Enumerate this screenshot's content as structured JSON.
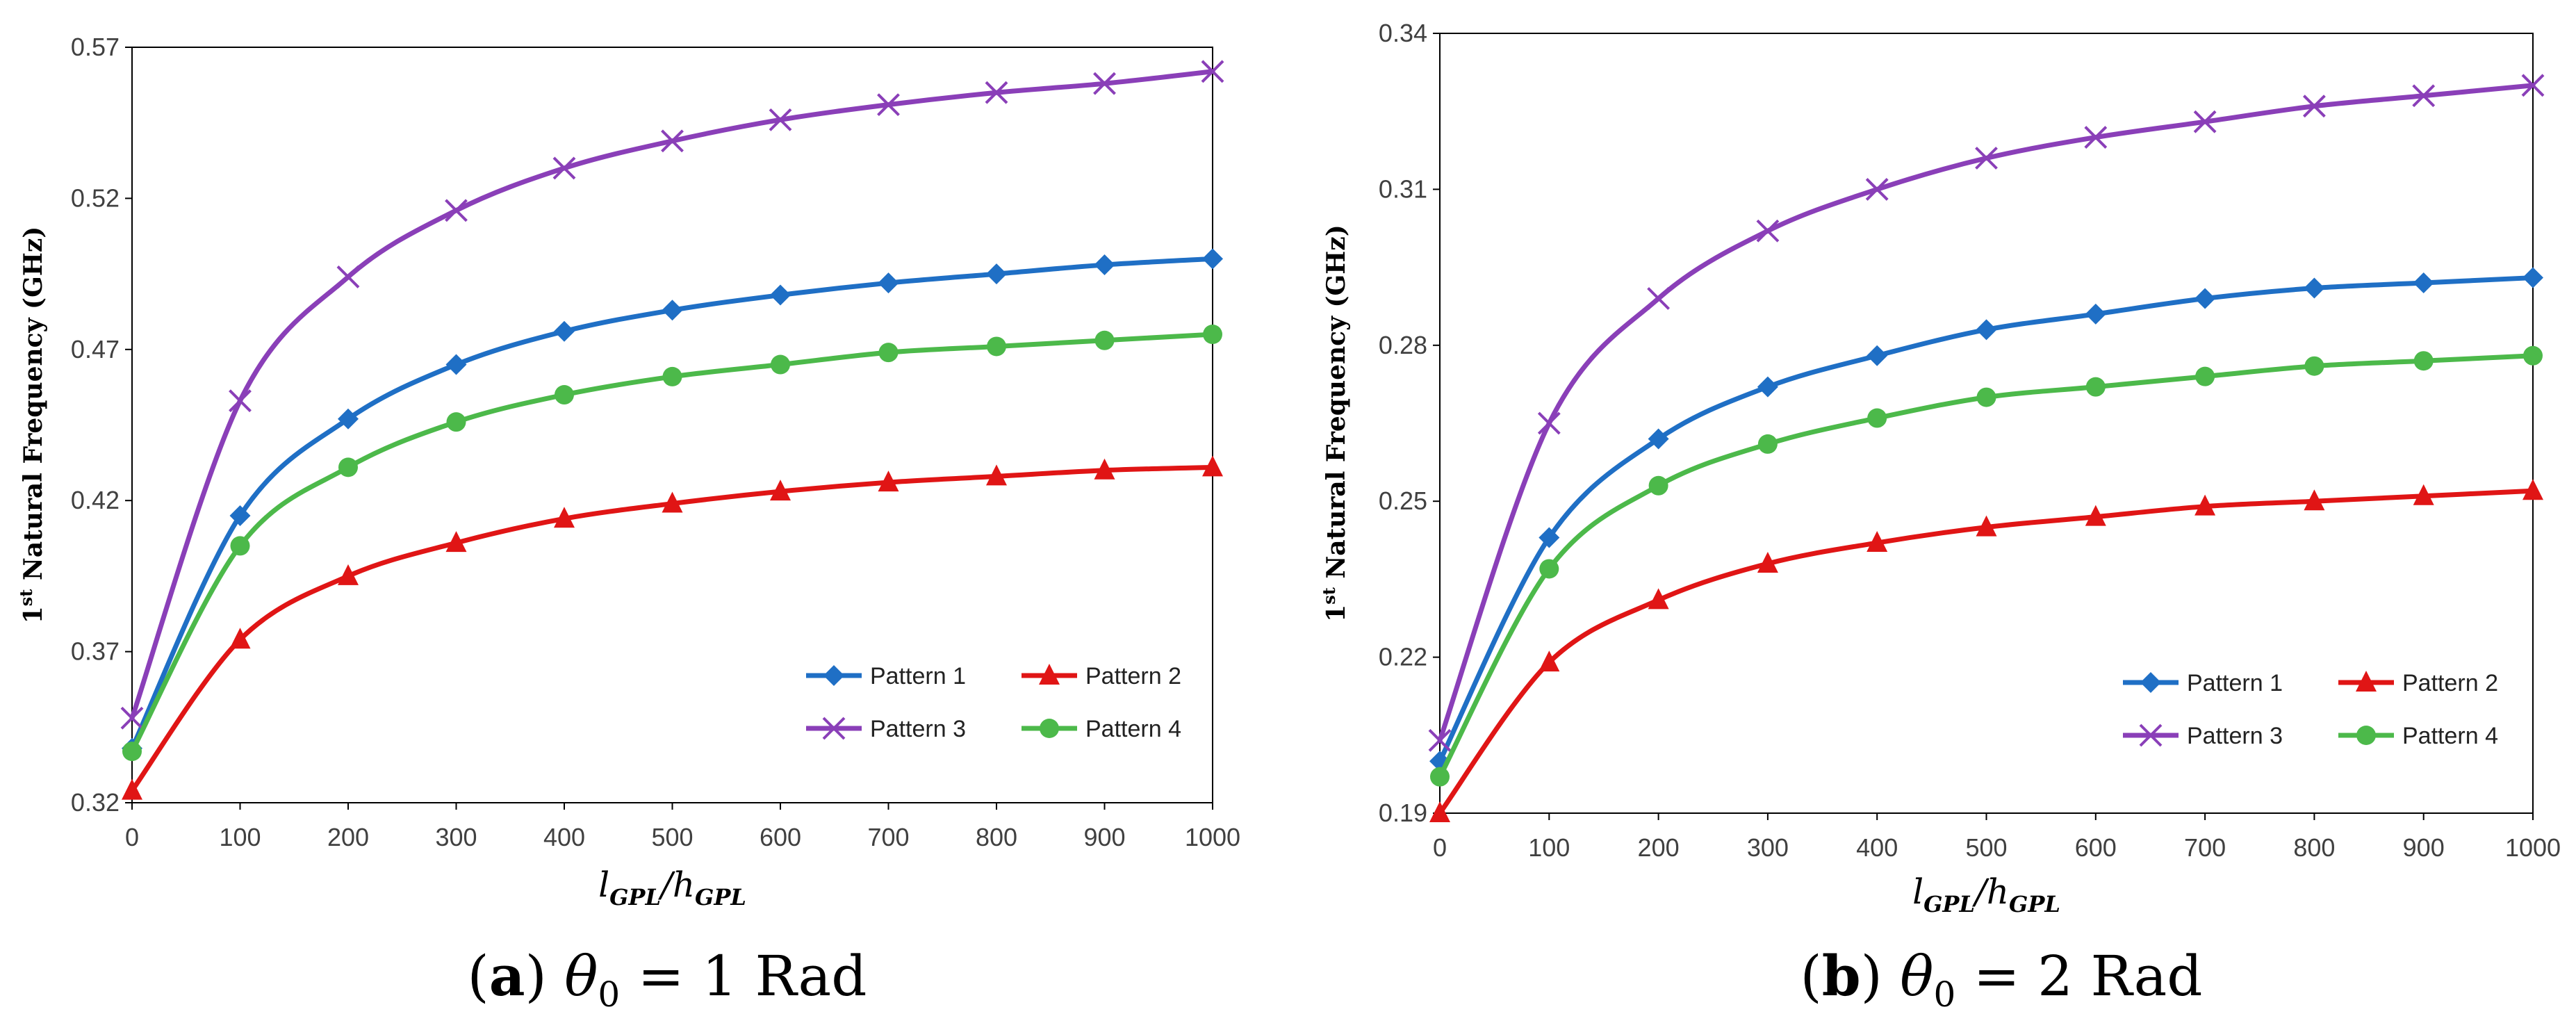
{
  "chart_data": [
    {
      "type": "line",
      "panel": "a",
      "caption_letter": "(a)",
      "caption_text": "θ₀ = 1 Rad",
      "ylabel": "1st Natural Frequency (GHz)",
      "ylabel_main": "1",
      "ylabel_sup": "st",
      "ylabel_rest": " Natural Frequency (GHz)",
      "xlabel": "lGPL/hGPL",
      "ylim": [
        0.32,
        0.57
      ],
      "yticks": [
        "0.32",
        "0.37",
        "0.42",
        "0.47",
        "0.52",
        "0.57"
      ],
      "xlim": [
        0,
        1000
      ],
      "xticks": [
        "0",
        "100",
        "200",
        "300",
        "400",
        "500",
        "600",
        "700",
        "800",
        "900",
        "1000"
      ],
      "x": [
        0,
        100,
        200,
        300,
        400,
        500,
        600,
        700,
        800,
        900,
        1000
      ],
      "legend_position": "bottom-right",
      "series": [
        {
          "name": "Pattern 1",
          "color": "#1f6fc5",
          "marker": "diamond",
          "values": [
            0.338,
            0.415,
            0.447,
            0.465,
            0.476,
            0.483,
            0.488,
            0.492,
            0.495,
            0.498,
            0.5
          ]
        },
        {
          "name": "Pattern 2",
          "color": "#e01515",
          "marker": "triangle",
          "values": [
            0.324,
            0.374,
            0.395,
            0.406,
            0.414,
            0.419,
            0.423,
            0.426,
            0.428,
            0.43,
            0.431
          ]
        },
        {
          "name": "Pattern 3",
          "color": "#8a3fb8",
          "marker": "x",
          "values": [
            0.348,
            0.453,
            0.494,
            0.516,
            0.53,
            0.539,
            0.546,
            0.551,
            0.555,
            0.558,
            0.562
          ]
        },
        {
          "name": "Pattern 4",
          "color": "#4cb94a",
          "marker": "circle",
          "values": [
            0.337,
            0.405,
            0.431,
            0.446,
            0.455,
            0.461,
            0.465,
            0.469,
            0.471,
            0.473,
            0.475
          ]
        }
      ]
    },
    {
      "type": "line",
      "panel": "b",
      "caption_letter": "(b)",
      "caption_text": "θ₀ = 2 Rad",
      "ylabel": "1st Natural Frequency (GHz)",
      "ylabel_main": "1",
      "ylabel_sup": "st",
      "ylabel_rest": " Natural Frequency (GHz)",
      "xlabel": "lGPL/hGPL",
      "ylim": [
        0.19,
        0.34
      ],
      "yticks": [
        "0.19",
        "0.22",
        "0.25",
        "0.28",
        "0.31",
        "0.34"
      ],
      "xlim": [
        0,
        1000
      ],
      "xticks": [
        "0",
        "100",
        "200",
        "300",
        "400",
        "500",
        "600",
        "700",
        "800",
        "900",
        "1000"
      ],
      "x": [
        0,
        100,
        200,
        300,
        400,
        500,
        600,
        700,
        800,
        900,
        1000
      ],
      "legend_position": "bottom-right",
      "series": [
        {
          "name": "Pattern 1",
          "color": "#1f6fc5",
          "marker": "diamond",
          "values": [
            0.2,
            0.243,
            0.262,
            0.272,
            0.278,
            0.283,
            0.286,
            0.289,
            0.291,
            0.292,
            0.293
          ]
        },
        {
          "name": "Pattern 2",
          "color": "#e01515",
          "marker": "triangle",
          "values": [
            0.19,
            0.219,
            0.231,
            0.238,
            0.242,
            0.245,
            0.247,
            0.249,
            0.25,
            0.251,
            0.252
          ]
        },
        {
          "name": "Pattern 3",
          "color": "#8a3fb8",
          "marker": "x",
          "values": [
            0.204,
            0.265,
            0.289,
            0.302,
            0.31,
            0.316,
            0.32,
            0.323,
            0.326,
            0.328,
            0.33
          ]
        },
        {
          "name": "Pattern 4",
          "color": "#4cb94a",
          "marker": "circle",
          "values": [
            0.197,
            0.237,
            0.253,
            0.261,
            0.266,
            0.27,
            0.272,
            0.274,
            0.276,
            0.277,
            0.278
          ]
        }
      ]
    }
  ]
}
